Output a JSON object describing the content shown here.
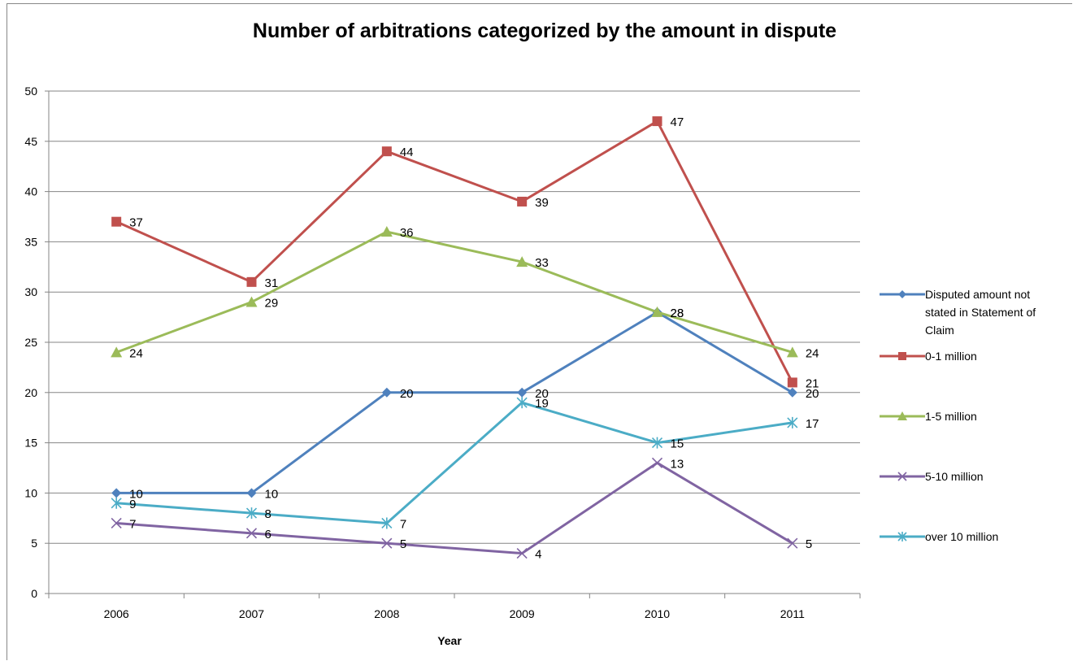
{
  "chart_data": {
    "type": "line",
    "title": "Number of arbitrations categorized by the amount in dispute",
    "xlabel": "Year",
    "ylabel": "",
    "categories": [
      "2006",
      "2007",
      "2008",
      "2009",
      "2010",
      "2011"
    ],
    "ylim": [
      0,
      50
    ],
    "yticks": [
      0,
      5,
      10,
      15,
      20,
      25,
      30,
      35,
      40,
      45,
      50
    ],
    "grid": true,
    "legend_position": "right",
    "series": [
      {
        "name": "Disputed amount not stated in Statement of Claim",
        "legend_lines": [
          "Disputed amount not",
          "stated in Statement of",
          "Claim"
        ],
        "values": [
          10,
          10,
          20,
          20,
          28,
          20
        ],
        "color": "#4F81BD",
        "marker": "diamond"
      },
      {
        "name": "0-1 million",
        "legend_lines": [
          "0-1 million"
        ],
        "values": [
          37,
          31,
          44,
          39,
          47,
          21
        ],
        "color": "#C0504D",
        "marker": "square"
      },
      {
        "name": "1-5 million",
        "legend_lines": [
          "1-5 million"
        ],
        "values": [
          24,
          29,
          36,
          33,
          28,
          24
        ],
        "color": "#9BBB59",
        "marker": "triangle"
      },
      {
        "name": "5-10 million",
        "legend_lines": [
          "5-10 million"
        ],
        "values": [
          7,
          6,
          5,
          4,
          13,
          5
        ],
        "color": "#8064A2",
        "marker": "x"
      },
      {
        "name": "over 10 million",
        "legend_lines": [
          "over 10 million"
        ],
        "values": [
          9,
          8,
          7,
          19,
          15,
          17
        ],
        "color": "#4BACC6",
        "marker": "star"
      }
    ]
  }
}
